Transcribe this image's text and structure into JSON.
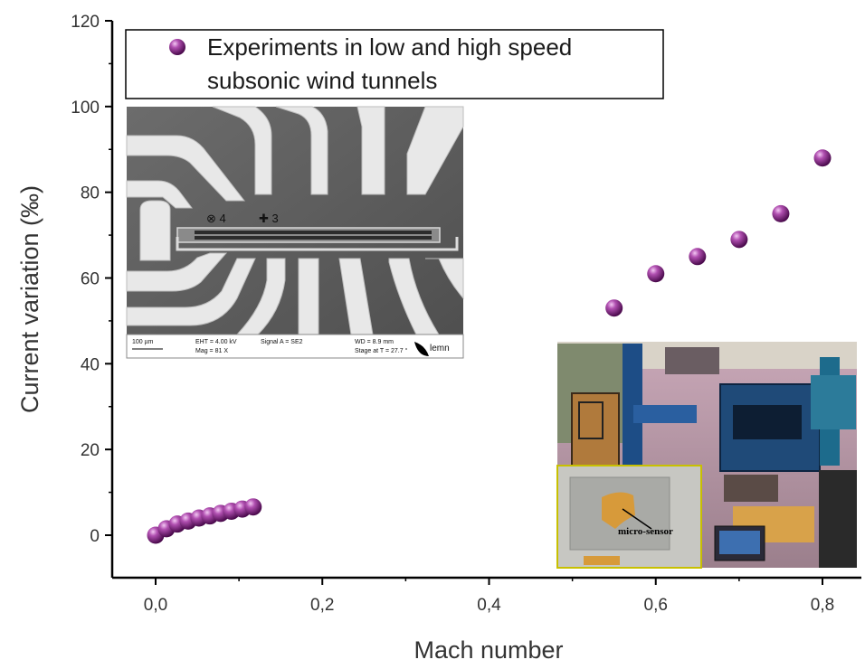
{
  "chart_data": {
    "type": "scatter",
    "xlabel": "Mach number",
    "ylabel": "Current variation (‰)",
    "xlim": [
      -0.05,
      0.85
    ],
    "ylim": [
      -10,
      120
    ],
    "xticks": [
      0.0,
      0.2,
      0.4,
      0.6,
      0.8
    ],
    "xtick_labels": [
      "0,0",
      "0,2",
      "0,4",
      "0,6",
      "0,8"
    ],
    "yticks": [
      0,
      20,
      40,
      60,
      80,
      100,
      120
    ],
    "ytick_labels": [
      "0",
      "20",
      "40",
      "60",
      "80",
      "100",
      "120"
    ],
    "grid": false,
    "legend_position": "top-left",
    "series": [
      {
        "name": "Experiments in low and high speed subsonic wind tunnels",
        "legend_lines": [
          "Experiments in low and high speed",
          "subsonic wind tunnels"
        ],
        "color": "#7b1f7e",
        "marker": "sphere",
        "x": [
          0.0,
          0.013,
          0.026,
          0.039,
          0.052,
          0.065,
          0.078,
          0.091,
          0.104,
          0.117,
          0.55,
          0.6,
          0.65,
          0.7,
          0.75,
          0.8
        ],
        "y": [
          0.0,
          1.5,
          2.6,
          3.3,
          4.0,
          4.5,
          5.1,
          5.6,
          6.1,
          6.6,
          53.0,
          61.0,
          65.0,
          69.0,
          75.0,
          88.0
        ]
      }
    ],
    "insets": {
      "sem": {
        "scale_label": "100 µm",
        "eht": "EHT = 4.00 kV",
        "mag": "Mag = 81 X",
        "signal": "Signal A = SE2",
        "wd": "WD = 8.9 mm",
        "stage": "Stage at T = 27.7 °",
        "logo": "lemn",
        "marks": [
          "⊗ 4",
          "✚ 3"
        ]
      },
      "wind_tunnel": {
        "callout": "micro-sensor"
      }
    }
  }
}
